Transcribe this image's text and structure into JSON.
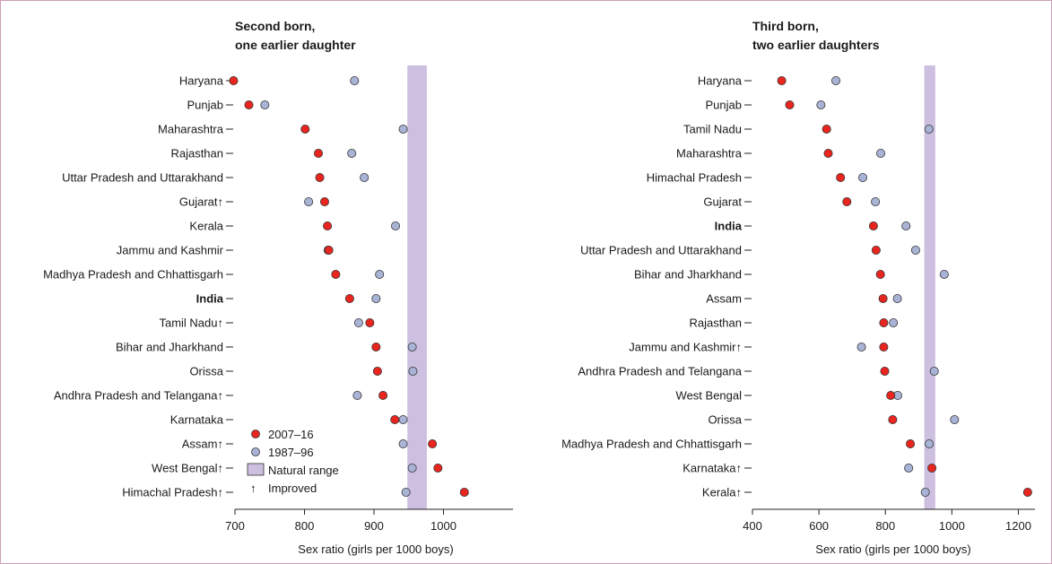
{
  "colors": {
    "series_2007": "#e8251f",
    "series_1987": "#a9b3d6",
    "natural_range": "#cdbfe0",
    "frame": "#c9a0b8"
  },
  "legend": {
    "s2007": "2007–16",
    "s1987": "1987–96",
    "natural": "Natural range",
    "improved_symbol": "↑",
    "improved": "Improved"
  },
  "chart_data": [
    {
      "type": "scatter",
      "title": "Second born, one earlier daughter",
      "title_line1": "Second born,",
      "title_line2": "one earlier daughter",
      "xlabel": "Sex ratio (girls per 1000 boys)",
      "xlim": [
        700,
        1100
      ],
      "xticks": [
        700,
        800,
        900,
        1000
      ],
      "natural_range": [
        948,
        976
      ],
      "legend_position": "bottom-left",
      "categories": [
        "Haryana",
        "Punjab",
        "Maharashtra",
        "Rajasthan",
        "Uttar Pradesh and Uttarakhand",
        "Gujarat↑",
        "Kerala",
        "Jammu and Kashmir",
        "Madhya Pradesh and Chhattisgarh",
        "India",
        "Tamil Nadu↑",
        "Bihar and Jharkhand",
        "Orissa",
        "Andhra Pradesh and Telangana↑",
        "Karnataka",
        "Assam↑",
        "West Bengal↑",
        "Himachal Pradesh↑"
      ],
      "bold_category": "India",
      "series": [
        {
          "name": "2007–16",
          "values": [
            698,
            720,
            801,
            820,
            822,
            829,
            833,
            835,
            845,
            865,
            894,
            903,
            905,
            913,
            930,
            984,
            992,
            1030
          ]
        },
        {
          "name": "1987–96",
          "values": [
            872,
            743,
            942,
            868,
            886,
            806,
            931,
            834,
            908,
            903,
            878,
            955,
            956,
            876,
            942,
            942,
            955,
            946
          ]
        }
      ]
    },
    {
      "type": "scatter",
      "title": "Third born, two earlier daughters",
      "title_line1": "Third born,",
      "title_line2": "two earlier daughters",
      "xlabel": "Sex ratio (girls per 1000 boys)",
      "xlim": [
        400,
        1250
      ],
      "xticks": [
        400,
        600,
        800,
        1000,
        1200
      ],
      "natural_range": [
        917,
        950
      ],
      "categories": [
        "Haryana",
        "Punjab",
        "Tamil Nadu",
        "Maharashtra",
        "Himachal Pradesh",
        "Gujarat",
        "India",
        "Uttar Pradesh and Uttarakhand",
        "Bihar and Jharkhand",
        "Assam",
        "Rajasthan",
        "Jammu and Kashmir↑",
        "Andhra Pradesh and Telangana",
        "West Bengal",
        "Orissa",
        "Madhya Pradesh and Chhattisgarh",
        "Karnataka↑",
        "Kerala↑"
      ],
      "bold_category": "India",
      "series": [
        {
          "name": "2007–16",
          "values": [
            488,
            512,
            623,
            628,
            665,
            684,
            764,
            772,
            785,
            793,
            795,
            795,
            798,
            816,
            822,
            875,
            940,
            1228
          ]
        },
        {
          "name": "1987–96",
          "values": [
            651,
            606,
            931,
            786,
            732,
            770,
            862,
            891,
            977,
            836,
            824,
            728,
            947,
            837,
            1008,
            932,
            870,
            920
          ]
        }
      ]
    }
  ]
}
